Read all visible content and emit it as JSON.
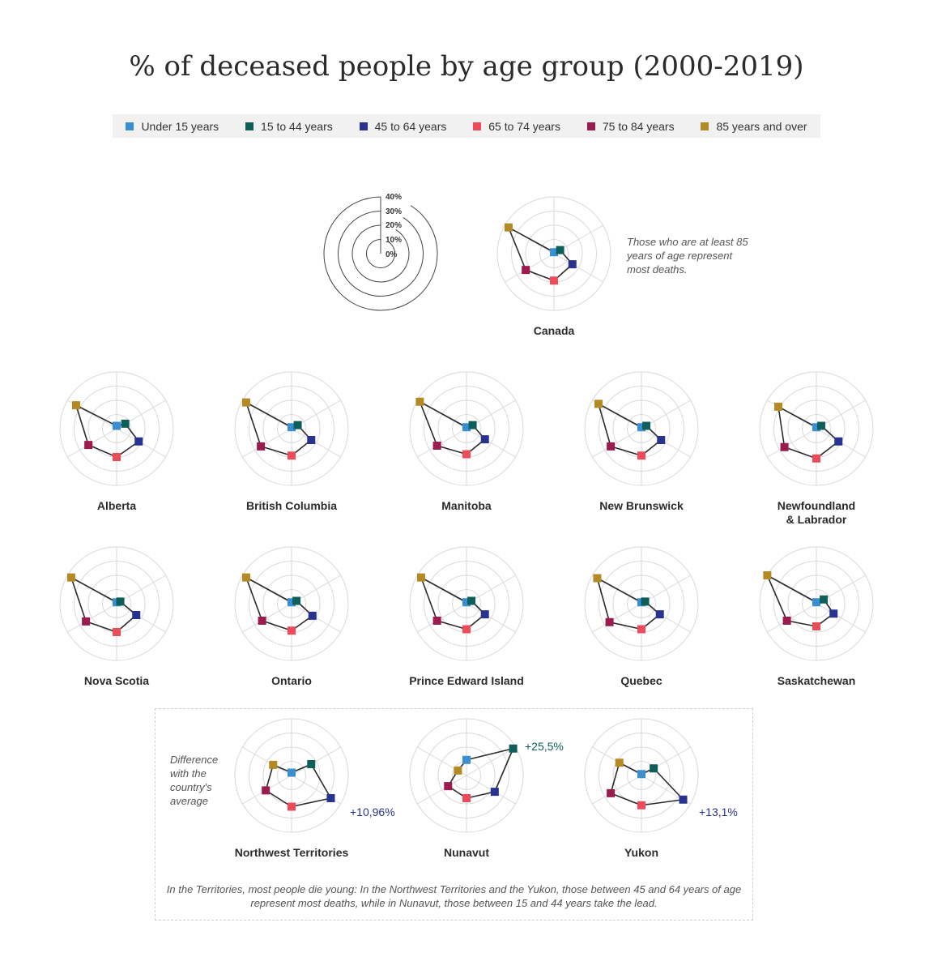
{
  "title": "% of deceased people by age group (2000-2019)",
  "colors": {
    "Under 15 years": "#3a8fd0",
    "15 to 44 years": "#0e5e5a",
    "45 to 64 years": "#27338f",
    "65 to 74 years": "#ee4b5a",
    "75 to 84 years": "#9b1b4e",
    "85 years and over": "#b48a25"
  },
  "legend": [
    "Under 15 years",
    "15 to 44 years",
    "45 to 64 years",
    "65 to 74 years",
    "75 to 84 years",
    "85 years and over"
  ],
  "scale_labels": [
    "40%",
    "30%",
    "20%",
    "10%",
    "0%"
  ],
  "annotations": {
    "canada": "Those who are at least 85 years of age represent most deaths.",
    "difference": "Difference with the country's average",
    "nwt_diff": "+10,96%",
    "nunavut_diff": "+25,5%",
    "yukon_diff": "+13,1%",
    "footnote": "In the Territories, most people die young: In the Northwest Territories and the Yukon, those between 45 and 64 years of age represent most deaths, while in Nunavut, those between 15 and 44 years take the lead."
  },
  "chart_data": {
    "type": "radar",
    "axes": [
      "Under 15 years",
      "15 to 44 years",
      "45 to 64 years",
      "65 to 74 years",
      "75 to 84 years",
      "85 years and over"
    ],
    "rmax": 40,
    "regions": [
      {
        "name": "Canada",
        "values": [
          1,
          5,
          15,
          19,
          23,
          37
        ]
      },
      {
        "name": "Alberta",
        "values": [
          2,
          7,
          18,
          20,
          23,
          33
        ]
      },
      {
        "name": "British Columbia",
        "values": [
          1,
          5,
          16,
          19,
          25,
          37
        ]
      },
      {
        "name": "Manitoba",
        "values": [
          1,
          5,
          15,
          18,
          24,
          38
        ]
      },
      {
        "name": "New Brunswick",
        "values": [
          1,
          4,
          16,
          19,
          25,
          35
        ]
      },
      {
        "name": "Newfoundland\n& Labrador",
        "values": [
          1,
          4,
          18,
          21,
          26,
          31
        ]
      },
      {
        "name": "Nova Scotia",
        "values": [
          1,
          3,
          16,
          20,
          25,
          37
        ]
      },
      {
        "name": "Ontario",
        "values": [
          1,
          4,
          17,
          19,
          24,
          37
        ]
      },
      {
        "name": "Prince Edward Island",
        "values": [
          1,
          4,
          15,
          18,
          24,
          37
        ]
      },
      {
        "name": "Quebec",
        "values": [
          1,
          3,
          15,
          18,
          26,
          36
        ]
      },
      {
        "name": "Saskatchewan",
        "values": [
          1,
          6,
          14,
          16,
          24,
          42
        ]
      },
      {
        "name": "Northwest Territories",
        "values": [
          2,
          16,
          32,
          22,
          21,
          15
        ]
      },
      {
        "name": "Nunavut",
        "values": [
          11,
          38,
          23,
          16,
          15,
          7
        ]
      },
      {
        "name": "Yukon",
        "values": [
          1,
          10,
          34,
          21,
          25,
          18
        ]
      }
    ]
  }
}
